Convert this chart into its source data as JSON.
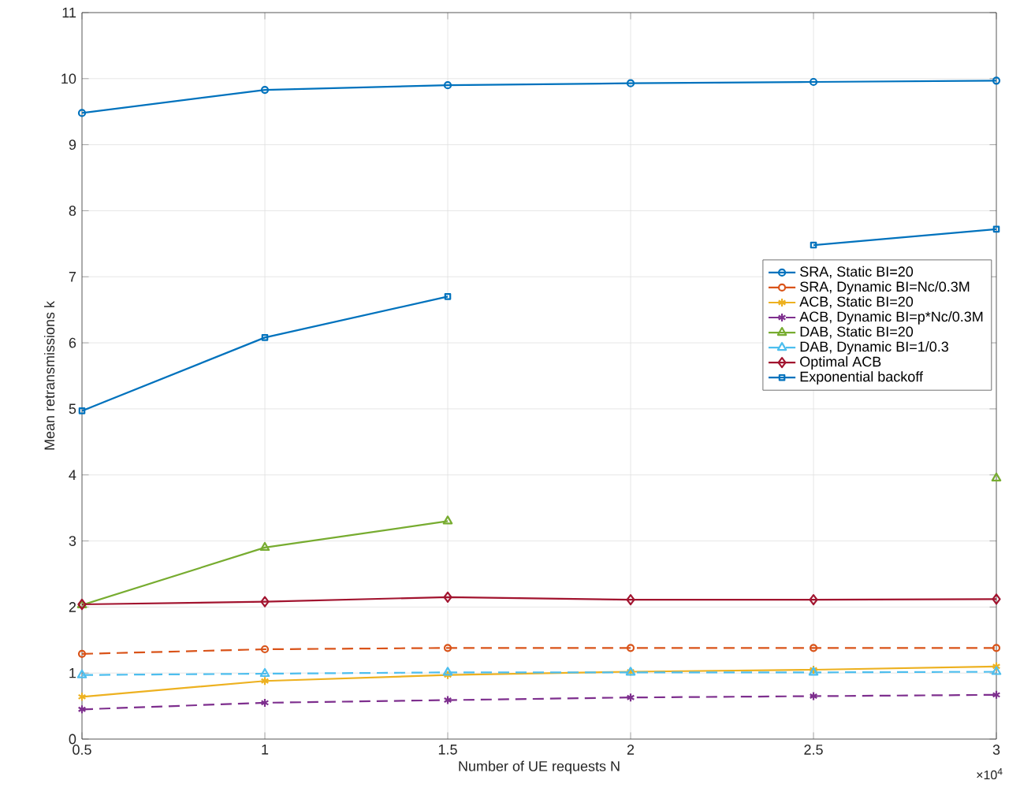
{
  "chart_data": {
    "type": "line",
    "xlabel": "Number of UE requests N",
    "ylabel": "Mean retransmissions k",
    "x": [
      0.5,
      1,
      1.5,
      2,
      2.5,
      3
    ],
    "xlim": [
      0.5,
      3
    ],
    "xticks": [
      0.5,
      1,
      1.5,
      2,
      2.5,
      3
    ],
    "ylim": [
      0,
      11
    ],
    "yticks": [
      0,
      1,
      2,
      3,
      4,
      5,
      6,
      7,
      8,
      9,
      10,
      11
    ],
    "grid": true,
    "legend": "right",
    "annotations": [
      "×10$^{4}$"
    ],
    "series": [
      {
        "name": "SRA, Static BI=20",
        "color": "#0072bd",
        "marker": "circle",
        "line_style": "solid",
        "values": [
          9.48,
          9.83,
          9.9,
          9.93,
          9.95,
          9.97
        ]
      },
      {
        "name": "SRA, Dynamic BI=Nc/0.3M",
        "color": "#d95319",
        "marker": "circle",
        "line_style": "dashed",
        "values": [
          1.29,
          1.36,
          1.38,
          1.38,
          1.38,
          1.38
        ]
      },
      {
        "name": "ACB, Static BI=20",
        "color": "#edb120",
        "marker": "cross",
        "line_style": "solid",
        "values": [
          0.64,
          0.88,
          0.97,
          1.02,
          1.05,
          1.1
        ]
      },
      {
        "name": "ACB, Dynamic BI=p*Nc/0.3M",
        "color": "#7e2f8e",
        "marker": "cross",
        "line_style": "dashed",
        "values": [
          0.45,
          0.55,
          0.59,
          0.63,
          0.65,
          0.67
        ]
      },
      {
        "name": "DAB, Static BI=20",
        "color": "#77ac30",
        "marker": "triangle",
        "line_style": "solid",
        "values": [
          2.03,
          2.9,
          3.3,
          null,
          null,
          3.95
        ]
      },
      {
        "name": "DAB, Dynamic BI=1/0.3",
        "color": "#4dbeee",
        "marker": "triangle",
        "line_style": "dashed",
        "values": [
          0.97,
          0.99,
          1.01,
          1.01,
          1.01,
          1.02
        ]
      },
      {
        "name": "Optimal ACB",
        "color": "#a2142f",
        "marker": "diamond",
        "line_style": "solid",
        "values": [
          2.04,
          2.08,
          2.15,
          2.11,
          2.11,
          2.12
        ]
      },
      {
        "name": "Exponential backoff",
        "color": "#0072bd",
        "marker": "square",
        "line_style": "solid",
        "values": [
          4.97,
          6.08,
          6.7,
          null,
          7.48,
          7.72
        ]
      }
    ]
  }
}
